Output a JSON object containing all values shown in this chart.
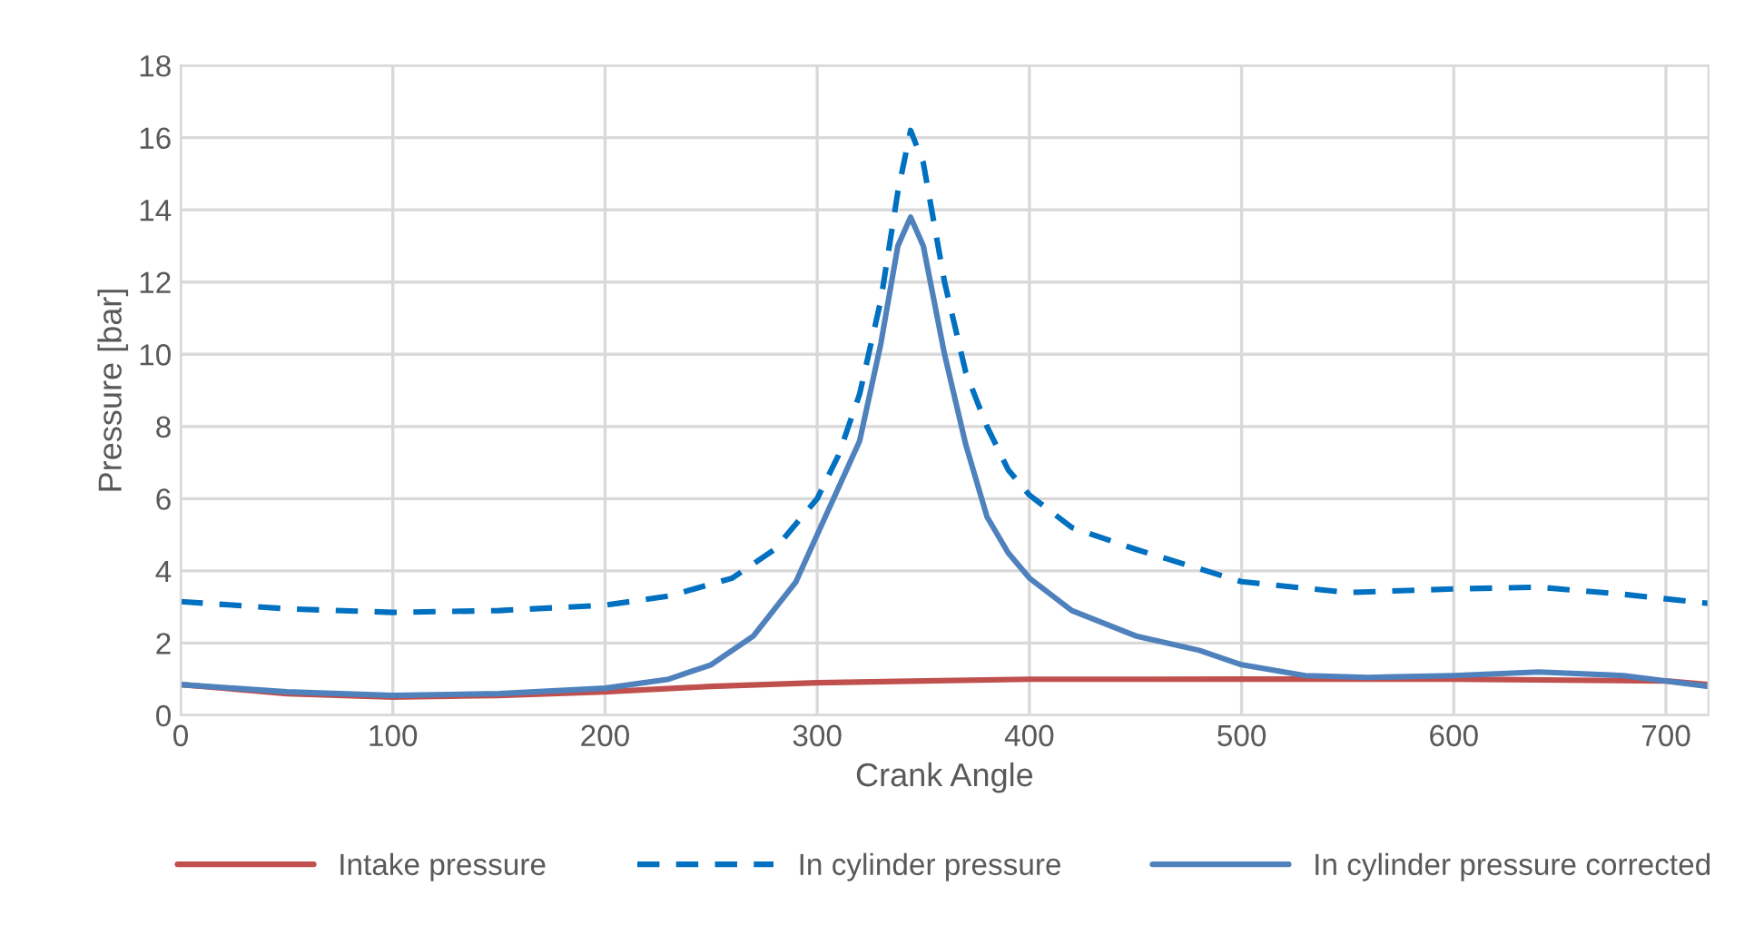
{
  "chart_data": {
    "type": "line",
    "xlabel": "Crank Angle",
    "ylabel": "Pressure [bar]",
    "xlim": [
      0,
      720
    ],
    "xticks": [
      0,
      100,
      200,
      300,
      400,
      500,
      600,
      700
    ],
    "ylim": [
      0,
      18
    ],
    "yticks": [
      0,
      2,
      4,
      6,
      8,
      10,
      12,
      14,
      16,
      18
    ],
    "grid": true,
    "legend": "bottom",
    "marker": "none",
    "series": [
      {
        "name": "Intake pressure",
        "color": "#c0504d",
        "line_style": "solid",
        "x": [
          0,
          50,
          100,
          150,
          200,
          250,
          300,
          350,
          400,
          500,
          600,
          700,
          720
        ],
        "values": [
          0.85,
          0.6,
          0.5,
          0.55,
          0.65,
          0.8,
          0.9,
          0.95,
          1.0,
          1.0,
          1.0,
          0.95,
          0.85
        ]
      },
      {
        "name": "In cylinder pressure",
        "color": "#0070c0",
        "line_style": "dashed",
        "x": [
          0,
          50,
          100,
          150,
          200,
          230,
          260,
          280,
          300,
          310,
          320,
          330,
          338,
          344,
          350,
          360,
          370,
          380,
          390,
          400,
          420,
          450,
          500,
          550,
          600,
          640,
          680,
          720
        ],
        "values": [
          3.15,
          2.95,
          2.85,
          2.9,
          3.05,
          3.3,
          3.8,
          4.6,
          6.0,
          7.2,
          8.9,
          11.5,
          14.5,
          16.2,
          15.3,
          12.0,
          9.5,
          8.0,
          6.8,
          6.1,
          5.2,
          4.6,
          3.7,
          3.4,
          3.5,
          3.55,
          3.35,
          3.1
        ]
      },
      {
        "name": "In cylinder pressure corrected",
        "color": "#4f81bd",
        "line_style": "solid",
        "x": [
          0,
          50,
          100,
          150,
          200,
          230,
          250,
          270,
          290,
          300,
          320,
          330,
          338,
          344,
          350,
          360,
          370,
          380,
          390,
          400,
          420,
          450,
          480,
          500,
          530,
          560,
          600,
          640,
          680,
          720
        ],
        "values": [
          0.85,
          0.65,
          0.55,
          0.6,
          0.75,
          1.0,
          1.4,
          2.2,
          3.7,
          5.0,
          7.6,
          10.3,
          13.0,
          13.8,
          13.0,
          10.0,
          7.5,
          5.5,
          4.5,
          3.8,
          2.9,
          2.2,
          1.8,
          1.4,
          1.1,
          1.05,
          1.1,
          1.2,
          1.1,
          0.8
        ]
      }
    ]
  }
}
